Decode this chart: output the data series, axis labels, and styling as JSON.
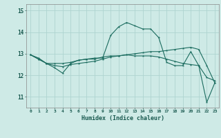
{
  "xlabel": "Humidex (Indice chaleur)",
  "background_color": "#ceeae6",
  "grid_color": "#aed4d0",
  "line_color": "#1a6b5e",
  "x_ticks": [
    0,
    1,
    2,
    3,
    4,
    5,
    6,
    7,
    8,
    9,
    10,
    11,
    12,
    13,
    14,
    15,
    16,
    17,
    18,
    19,
    20,
    21,
    22,
    23
  ],
  "ylim": [
    10.5,
    15.3
  ],
  "yticks": [
    11,
    12,
    13,
    14,
    15
  ],
  "series": [
    [
      12.95,
      12.8,
      12.55,
      12.35,
      12.1,
      12.55,
      12.7,
      12.75,
      12.8,
      12.8,
      13.85,
      14.25,
      14.45,
      14.3,
      14.15,
      14.15,
      13.75,
      12.6,
      12.45,
      12.45,
      13.1,
      12.45,
      10.75,
      11.65
    ],
    [
      12.95,
      12.75,
      12.55,
      12.55,
      12.55,
      12.6,
      12.7,
      12.75,
      12.75,
      12.85,
      12.9,
      12.9,
      12.95,
      12.9,
      12.9,
      12.9,
      12.85,
      12.75,
      12.65,
      12.55,
      12.5,
      12.45,
      11.9,
      11.75
    ],
    [
      12.95,
      12.75,
      12.55,
      12.45,
      12.4,
      12.5,
      12.55,
      12.6,
      12.65,
      12.75,
      12.85,
      12.9,
      12.95,
      13.0,
      13.05,
      13.1,
      13.1,
      13.15,
      13.2,
      13.25,
      13.3,
      13.2,
      12.45,
      11.65
    ]
  ]
}
